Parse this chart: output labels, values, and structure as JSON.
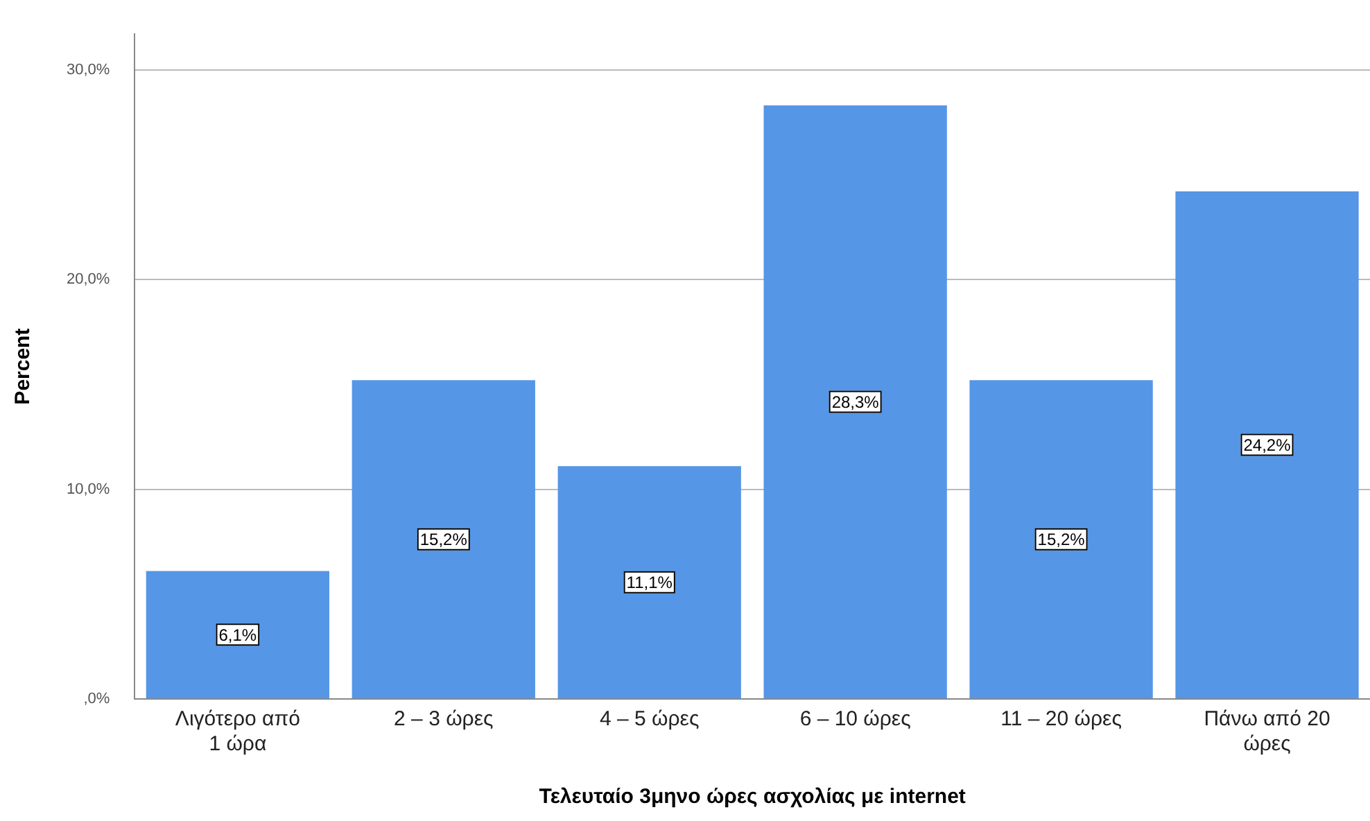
{
  "chart_data": {
    "type": "bar",
    "xlabel": "Τελευταίο 3μηνο ώρες ασχολίας με internet",
    "ylabel": "Percent",
    "categories": [
      "Λιγότερο από 1 ώρα",
      "2 – 3 ώρες",
      "4 – 5 ώρες",
      "6 – 10 ώρες",
      "11 – 20 ώρες",
      "Πάνω από 20 ώρες"
    ],
    "values": [
      6.1,
      15.2,
      11.1,
      28.3,
      15.2,
      24.2
    ],
    "value_labels": [
      "6,1%",
      "15,2%",
      "11,1%",
      "28,3%",
      "15,2%",
      "24,2%"
    ],
    "color": "#5596e6",
    "ylim": [
      0,
      31.7
    ],
    "yticks": [
      {
        "value": 0,
        "label": ",0%"
      },
      {
        "value": 10,
        "label": "10,0%"
      },
      {
        "value": 20,
        "label": "20,0%"
      },
      {
        "value": 30,
        "label": "30,0%"
      }
    ],
    "grid": "y",
    "legend": false
  }
}
